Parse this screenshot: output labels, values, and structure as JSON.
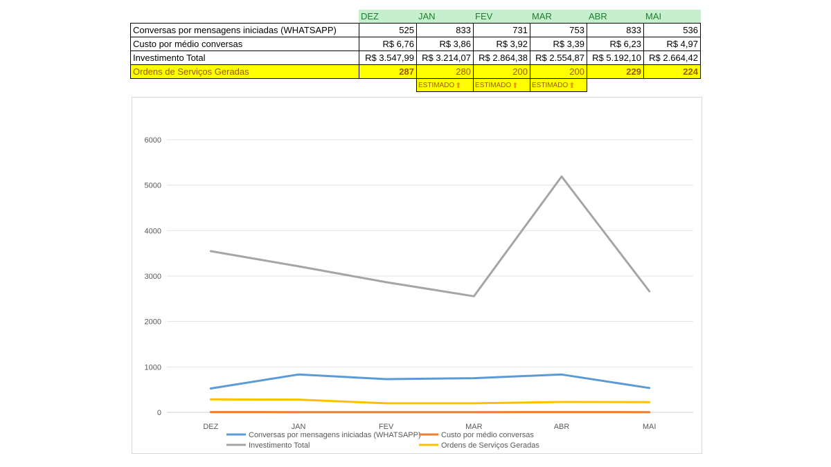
{
  "table": {
    "months": [
      "DEZ",
      "JAN",
      "FEV",
      "MAR",
      "ABR",
      "MAI"
    ],
    "rows": [
      {
        "label": "Conversas por mensagens iniciadas (WHATSAPP)",
        "values": [
          "525",
          "833",
          "731",
          "753",
          "833",
          "536"
        ]
      },
      {
        "label": "Custo por médio conversas",
        "values": [
          "R$ 6,76",
          "R$ 3,86",
          "R$ 3,92",
          "R$ 3,39",
          "R$ 6,23",
          "R$ 4,97"
        ]
      },
      {
        "label": "Investimento Total",
        "values": [
          "R$ 3.547,99",
          "R$ 3.214,07",
          "R$ 2.864,38",
          "R$ 2.554,87",
          "R$ 5.192,10",
          "R$ 2.664,42"
        ]
      },
      {
        "label": "Ordens de Serviços Geradas",
        "values": [
          "287",
          "280",
          "200",
          "200",
          "229",
          "224"
        ]
      }
    ],
    "estimated_label": "ESTIMADO",
    "estimated_columns": [
      "JAN",
      "FEV",
      "MAR"
    ],
    "colors": {
      "header_bg": "#c6efce",
      "header_text": "#1e7d2e",
      "highlight_bg": "#ffff00",
      "highlight_text": "#9c5700"
    }
  },
  "chart_data": {
    "type": "line",
    "categories": [
      "DEZ",
      "JAN",
      "FEV",
      "MAR",
      "ABR",
      "MAI"
    ],
    "ylim": [
      0,
      6000
    ],
    "yticks": [
      0,
      1000,
      2000,
      3000,
      4000,
      5000,
      6000
    ],
    "grid": true,
    "legend_position": "bottom",
    "series": [
      {
        "name": "Conversas por mensagens iniciadas (WHATSAPP)",
        "color": "#5b9bd5",
        "values": [
          525,
          833,
          731,
          753,
          833,
          536
        ]
      },
      {
        "name": "Custo por médio conversas",
        "color": "#ed7d31",
        "values": [
          6.76,
          3.86,
          3.92,
          3.39,
          6.23,
          4.97
        ]
      },
      {
        "name": "Investimento Total",
        "color": "#a5a5a5",
        "values": [
          3547.99,
          3214.07,
          2864.38,
          2554.87,
          5192.1,
          2664.42
        ]
      },
      {
        "name": "Ordens de Serviços Geradas",
        "color": "#ffc000",
        "values": [
          287,
          280,
          200,
          200,
          229,
          224
        ]
      }
    ]
  }
}
